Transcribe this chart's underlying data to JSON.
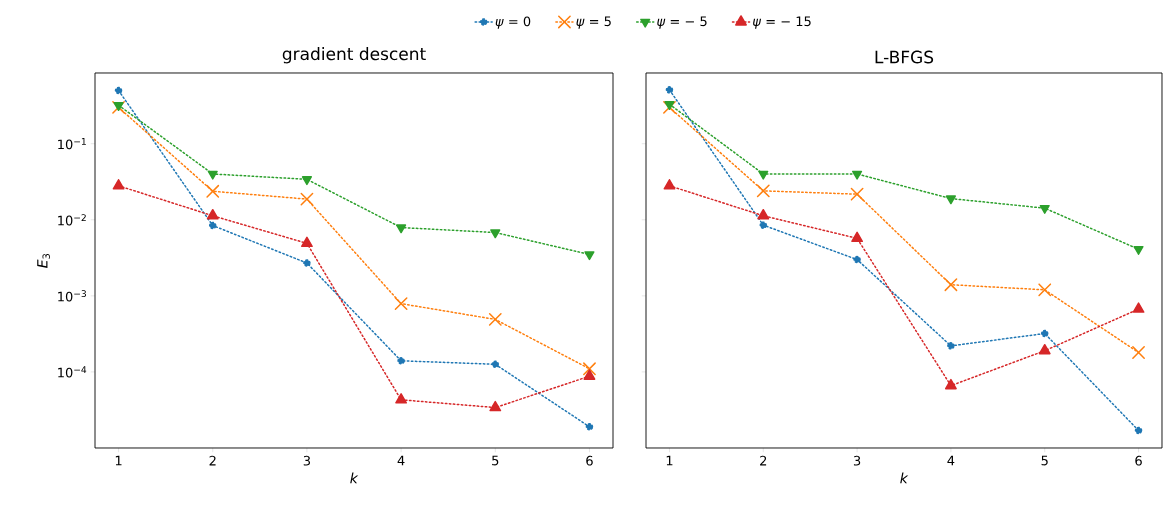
{
  "chart_data": [
    {
      "type": "line",
      "title": "gradient descent",
      "xlabel": "*k*",
      "ylabel": "*E*$_{3}$",
      "log": "y",
      "grid": false,
      "legend": "top",
      "line_style": "dotted",
      "x": [
        1,
        2,
        3,
        4,
        5,
        6
      ],
      "xlim": [
        0.75,
        6.25
      ],
      "xticks": [
        1,
        2,
        3,
        4,
        5,
        6
      ],
      "ylim": [
        1e-05,
        0.85
      ],
      "yticks": [
        {
          "value": 0.1,
          "label": "10$^{−1}$"
        },
        {
          "value": 0.01,
          "label": "10$^{−2}$"
        },
        {
          "value": 0.001,
          "label": "10$^{−3}$"
        },
        {
          "value": 0.0001,
          "label": "10$^{−4}$"
        }
      ],
      "series": [
        {
          "name": "*ψ* = 0",
          "color": "#1f77b4",
          "marker": "circle",
          "values": [
            0.5,
            0.0084,
            0.0027,
            0.00014,
            0.000126,
            1.9e-05
          ]
        },
        {
          "name": "*ψ* = 5",
          "color": "#ff7f0e",
          "marker": "cross",
          "values": [
            0.3,
            0.0237,
            0.0187,
            0.00079,
            0.00049,
            0.00011
          ]
        },
        {
          "name": "*ψ* = − 5",
          "color": "#2ca02c",
          "marker": "triangle_down",
          "values": [
            0.32,
            0.04,
            0.034,
            0.0079,
            0.0068,
            0.0035
          ]
        },
        {
          "name": "*ψ* = − 15",
          "color": "#d62728",
          "marker": "triangle",
          "values": [
            0.028,
            0.0113,
            0.0049,
            4.3e-05,
            3.4e-05,
            8.8e-05
          ]
        }
      ]
    },
    {
      "type": "line",
      "title": "L-BFGS",
      "xlabel": "*k*",
      "log": "y",
      "grid": false,
      "line_style": "dotted",
      "tick_labels": "x",
      "x": [
        1,
        2,
        3,
        4,
        5,
        6
      ],
      "xlim": [
        0.75,
        6.25
      ],
      "xticks": [
        1,
        2,
        3,
        4,
        5,
        6
      ],
      "ylim": [
        1e-05,
        0.85
      ],
      "yticks": [
        {
          "value": 0.1,
          "label": null
        },
        {
          "value": 0.01,
          "label": null
        },
        {
          "value": 0.001,
          "label": null
        },
        {
          "value": 0.0001,
          "label": null
        }
      ],
      "series": [
        {
          "color": "#1f77b4",
          "marker": "circle",
          "values": [
            0.51,
            0.0085,
            0.003,
            0.00022,
            0.00032,
            1.7e-05
          ]
        },
        {
          "color": "#ff7f0e",
          "marker": "cross",
          "values": [
            0.3,
            0.024,
            0.0217,
            0.0014,
            0.0012,
            0.00018
          ]
        },
        {
          "color": "#2ca02c",
          "marker": "triangle_down",
          "values": [
            0.33,
            0.04,
            0.04,
            0.019,
            0.0142,
            0.0041
          ]
        },
        {
          "color": "#d62728",
          "marker": "triangle",
          "values": [
            0.028,
            0.0113,
            0.0057,
            6.6e-05,
            0.00019,
            0.00067
          ]
        }
      ]
    }
  ]
}
